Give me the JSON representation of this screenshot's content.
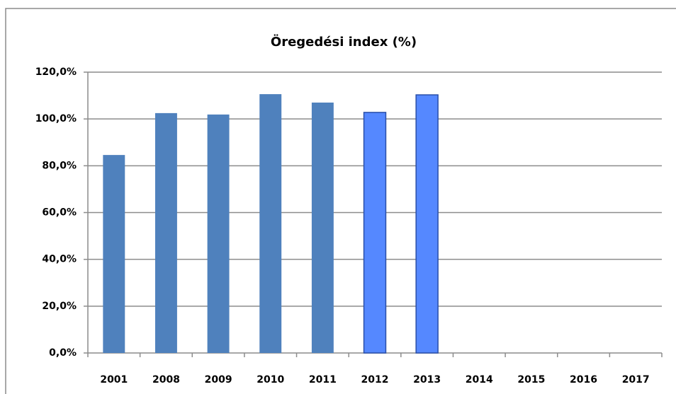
{
  "chart_data": {
    "type": "bar",
    "title": "Öregedési index (%)",
    "categories": [
      "2001",
      "2008",
      "2009",
      "2010",
      "2011",
      "2012",
      "2013",
      "2014",
      "2015",
      "2016",
      "2017"
    ],
    "values": [
      84.6,
      102.5,
      101.9,
      110.6,
      107.0,
      102.8,
      110.3,
      null,
      null,
      null,
      null
    ],
    "colors": [
      "#4f81bd",
      "#4f81bd",
      "#4f81bd",
      "#4f81bd",
      "#4f81bd",
      "#5588ff",
      "#5588ff",
      null,
      null,
      null,
      null
    ],
    "edgecolors": [
      null,
      null,
      null,
      null,
      null,
      "#2a4fa8",
      "#2a4fa8",
      null,
      null,
      null,
      null
    ],
    "ylim": [
      0,
      120
    ],
    "yticks": [
      {
        "value": 0,
        "label": "0,0%"
      },
      {
        "value": 20,
        "label": "20,0%"
      },
      {
        "value": 40,
        "label": "40,0%"
      },
      {
        "value": 60,
        "label": "60,0%"
      },
      {
        "value": 80,
        "label": "80,0%"
      },
      {
        "value": 100,
        "label": "100,0%"
      },
      {
        "value": 120,
        "label": "120,0%"
      }
    ],
    "grid": true
  }
}
